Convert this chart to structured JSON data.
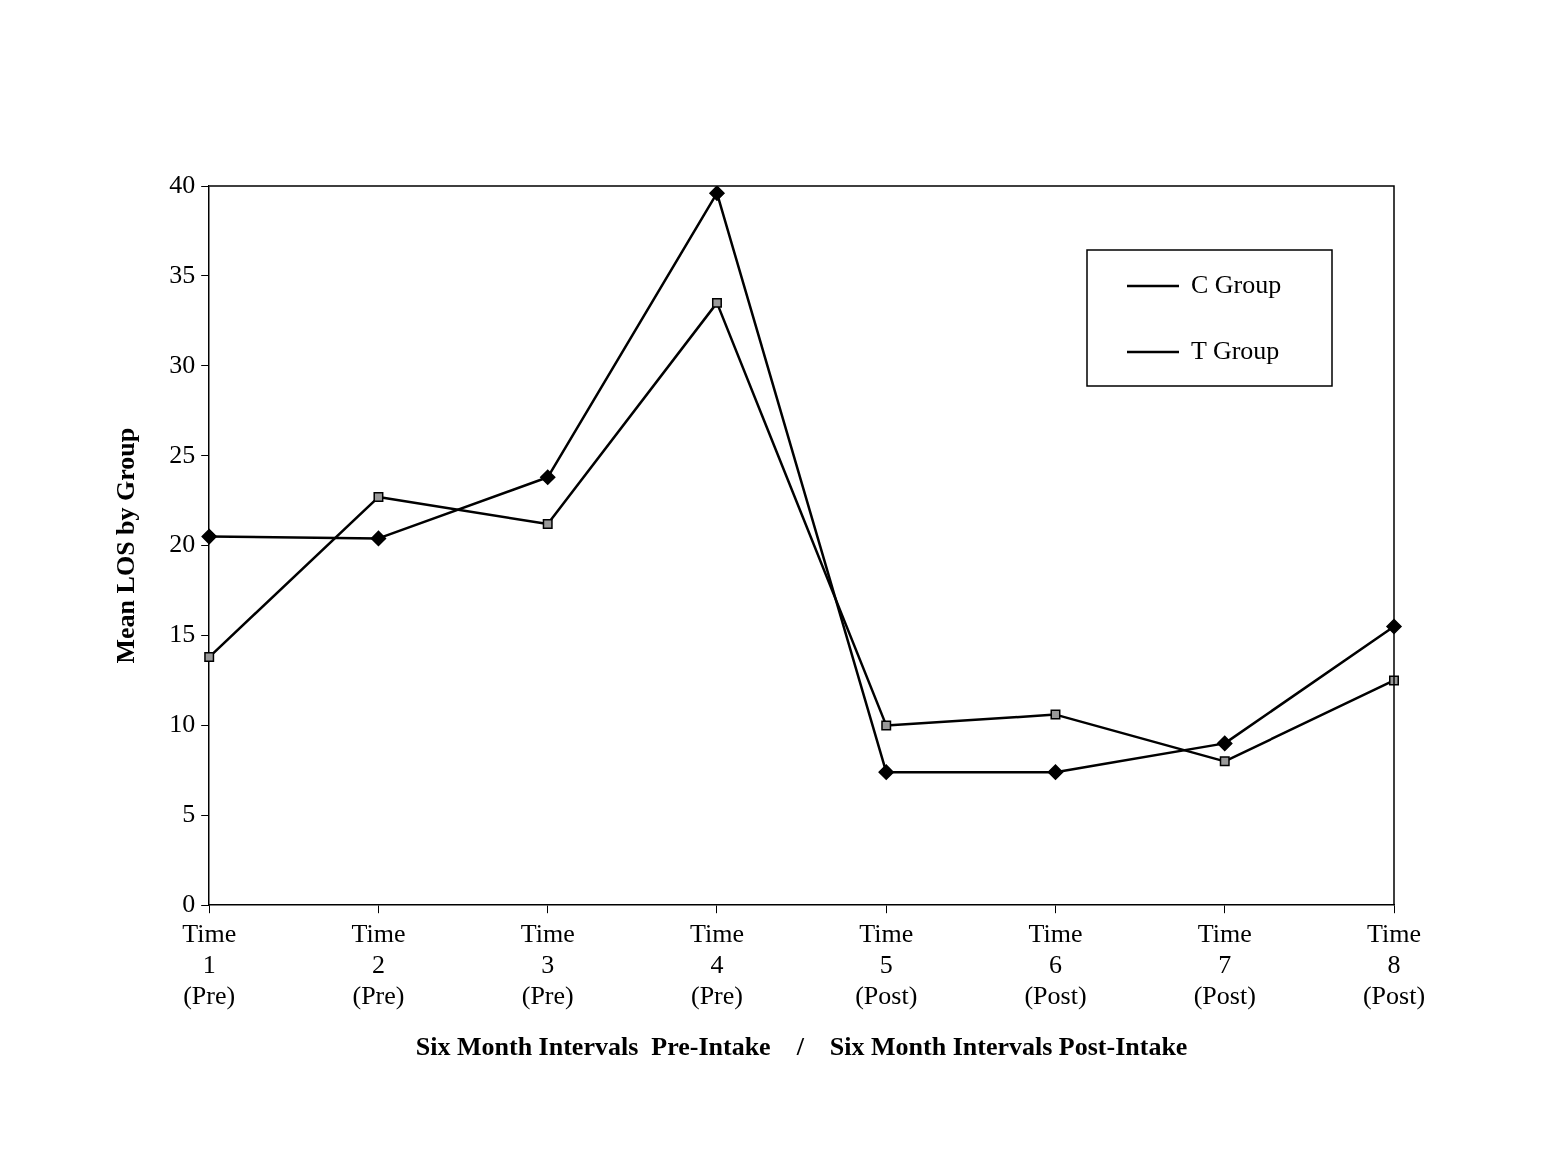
{
  "chart_data": {
    "type": "line",
    "xlabel": "Six Month Intervals  Pre-Intake    /    Six Month Intervals Post-Intake",
    "ylabel": "Mean LOS by Group",
    "categories": [
      "Time 1 (Pre)",
      "Time 2 (Pre)",
      "Time 3 (Pre)",
      "Time 4 (Pre)",
      "Time 5 (Post)",
      "Time 6 (Post)",
      "Time 7 (Post)",
      "Time 8 (Post)"
    ],
    "series": [
      {
        "name": "C Group",
        "color": "#000000",
        "marker": "diamond",
        "values": [
          20.5,
          20.4,
          23.8,
          39.6,
          7.4,
          7.4,
          9.0,
          15.5
        ]
      },
      {
        "name": "T Group",
        "color": "#000000",
        "marker": "square",
        "values": [
          13.8,
          22.7,
          21.2,
          33.5,
          10.0,
          10.6,
          8.0,
          12.5
        ]
      }
    ],
    "ylim": [
      0,
      40
    ],
    "yticks": [
      0,
      5,
      10,
      15,
      20,
      25,
      30,
      35,
      40
    ],
    "grid": false,
    "legend": "top right",
    "line_style": "solid"
  }
}
